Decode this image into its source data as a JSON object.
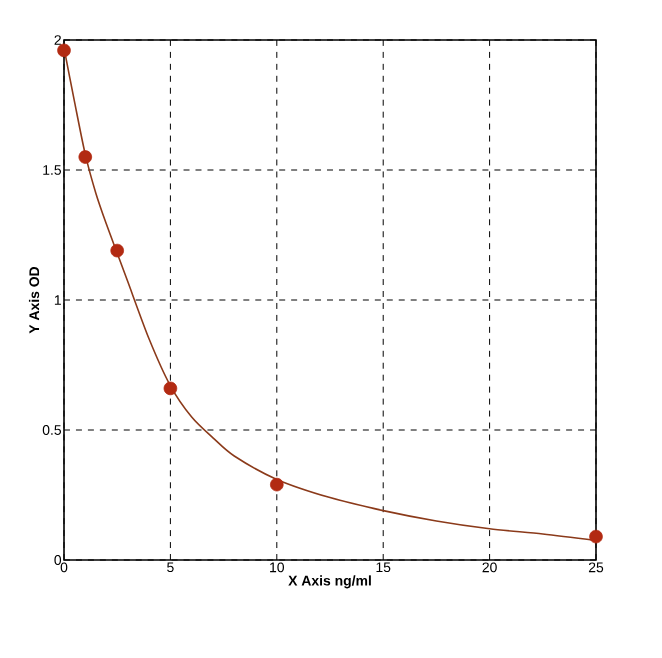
{
  "chart_data": {
    "type": "scatter",
    "xlabel": "X Axis ng/ml",
    "ylabel": "Y Axis OD",
    "xlim": [
      0,
      25
    ],
    "ylim": [
      0,
      2
    ],
    "xticks": [
      0,
      5,
      10,
      15,
      20,
      25
    ],
    "yticks": [
      0,
      0.5,
      1,
      1.5,
      2
    ],
    "grid": true,
    "series": [
      {
        "marker": "circle",
        "color": "#b22a12",
        "x": [
          0,
          1,
          2.5,
          5,
          10,
          25
        ],
        "values": [
          1.96,
          1.55,
          1.19,
          0.66,
          0.29,
          0.09
        ]
      },
      {
        "type": "line",
        "marker": "none",
        "color": "#8b3a1a",
        "x": [
          0,
          0.5,
          1,
          1.5,
          2,
          2.5,
          3,
          4,
          5,
          6,
          7,
          8,
          10,
          12.5,
          15,
          17.5,
          20,
          22.5,
          25
        ],
        "values": [
          1.97,
          1.76,
          1.56,
          1.41,
          1.29,
          1.18,
          1.07,
          0.85,
          0.67,
          0.55,
          0.47,
          0.4,
          0.31,
          0.24,
          0.19,
          0.15,
          0.12,
          0.1,
          0.075
        ]
      }
    ]
  }
}
